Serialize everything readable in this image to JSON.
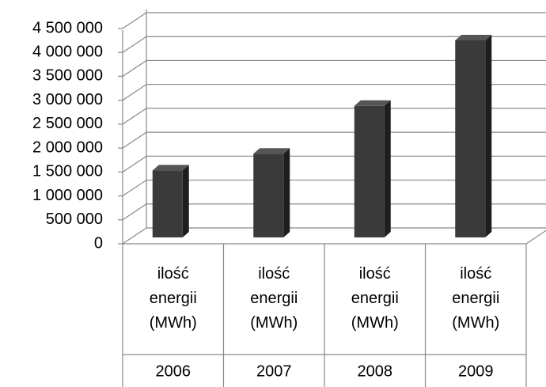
{
  "chart_data": {
    "type": "bar3d",
    "categories": [
      "2006",
      "2007",
      "2008",
      "2009"
    ],
    "inner_labels": [
      "ilość energii (MWh)",
      "ilość energii (MWh)",
      "ilość energii (MWh)",
      "ilość energii (MWh)"
    ],
    "values": [
      1400000,
      1750000,
      2750000,
      4120000
    ],
    "color": "#3a3a3a",
    "ylim": [
      0,
      4500000
    ],
    "yticks": [
      0,
      {
        "value": 500000,
        "label": "500 000"
      },
      {
        "value": 1000000,
        "label": "1 000 000"
      },
      {
        "value": 1500000,
        "label": "1 500 000"
      },
      {
        "value": 2000000,
        "label": "2 000 000"
      },
      {
        "value": 2500000,
        "label": "2 500 000"
      },
      {
        "value": 3000000,
        "label": "3 000 000"
      },
      {
        "value": 3500000,
        "label": "3 500 000"
      },
      {
        "value": 4000000,
        "label": "4 000 000"
      },
      {
        "value": 4500000,
        "label": "4 500 000"
      }
    ],
    "grid": true
  }
}
